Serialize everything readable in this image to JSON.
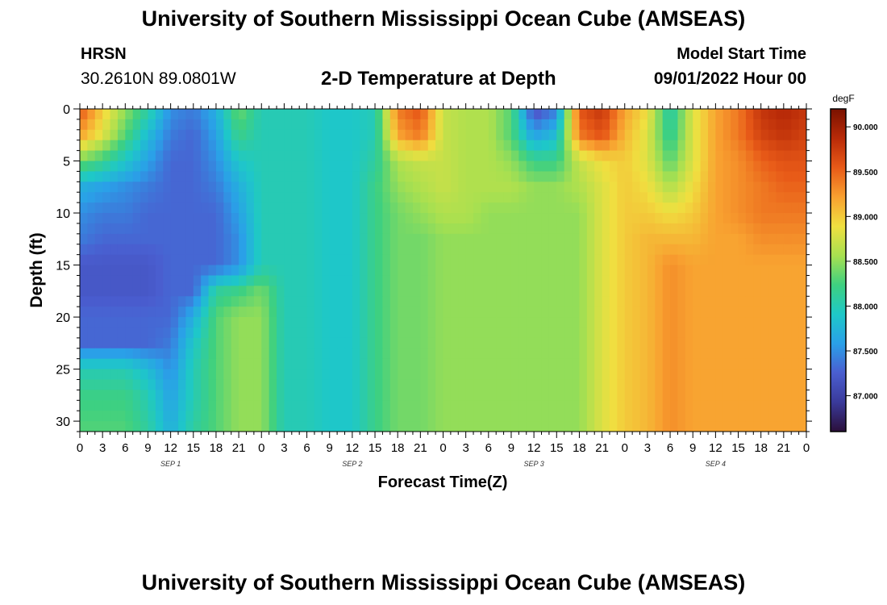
{
  "header": {
    "title": "University of Southern Mississippi Ocean Cube (AMSEAS)",
    "station": "HRSN",
    "coords": "30.2610N  89.0801W",
    "subtitle": "2-D Temperature at Depth",
    "model_start_label": "Model Start Time",
    "model_start_value": "09/01/2022 Hour 00"
  },
  "footer": {
    "title": "University of Southern Mississippi Ocean Cube (AMSEAS)"
  },
  "chart_data": {
    "type": "heatmap",
    "xlabel": "Forecast Time(Z)",
    "ylabel": "Depth (ft)",
    "x_ticks": [
      "0",
      "3",
      "6",
      "9",
      "12",
      "15",
      "18",
      "21",
      "0",
      "3",
      "6",
      "9",
      "12",
      "15",
      "18",
      "21",
      "0",
      "3",
      "6",
      "9",
      "12",
      "15",
      "18",
      "21",
      "0",
      "3",
      "6",
      "9",
      "12",
      "15",
      "18",
      "21",
      "0"
    ],
    "x_hours": [
      0,
      3,
      6,
      9,
      12,
      15,
      18,
      21,
      24,
      27,
      30,
      33,
      36,
      39,
      42,
      45,
      48,
      51,
      54,
      57,
      60,
      63,
      66,
      69,
      72,
      75,
      78,
      81,
      84,
      87,
      90,
      93,
      96
    ],
    "xlim": [
      0,
      96
    ],
    "day_labels": [
      "SEP 1",
      "SEP 2",
      "SEP 3",
      "SEP 4"
    ],
    "day_label_hours": [
      12,
      36,
      60,
      84
    ],
    "y_ticks": [
      0,
      5,
      10,
      15,
      20,
      25,
      30
    ],
    "ylim": [
      0,
      31
    ],
    "colorbar": {
      "unit": "degF",
      "ticks": [
        "87.000",
        "87.500",
        "88.000",
        "88.500",
        "89.000",
        "89.500",
        "90.000"
      ],
      "tick_values": [
        87.0,
        87.5,
        88.0,
        88.5,
        89.0,
        89.5,
        90.0
      ],
      "range": [
        86.6,
        90.2
      ],
      "stops": [
        "#2b0f3a",
        "#3a3a9a",
        "#4a5ed0",
        "#2aa0e8",
        "#1ec8c8",
        "#3ed080",
        "#a8e050",
        "#f0e040",
        "#f8a030",
        "#e85a18",
        "#b82a08",
        "#7a1200"
      ]
    },
    "depths_ft": [
      0,
      2.5,
      5,
      7.5,
      10,
      12.5,
      15,
      17.5,
      20,
      22.5,
      25,
      27.5,
      31
    ],
    "hours": [
      0,
      3,
      6,
      9,
      12,
      15,
      18,
      21,
      24,
      27,
      30,
      33,
      36,
      39,
      42,
      45,
      48,
      51,
      54,
      57,
      60,
      63,
      66,
      69,
      72,
      75,
      78,
      81,
      84,
      87,
      90,
      93,
      96
    ],
    "values_degF": [
      [
        89.6,
        89.0,
        88.5,
        88.1,
        87.5,
        87.4,
        87.7,
        88.4,
        88.0,
        88.0,
        88.0,
        87.9,
        87.9,
        88.0,
        89.4,
        89.6,
        88.7,
        88.6,
        88.6,
        88.3,
        87.1,
        87.4,
        89.6,
        89.8,
        89.2,
        88.9,
        88.0,
        88.8,
        89.2,
        89.4,
        89.8,
        89.9,
        89.8
      ],
      [
        89.2,
        88.8,
        88.3,
        87.8,
        87.4,
        87.3,
        87.6,
        88.2,
        88.0,
        88.0,
        88.0,
        87.9,
        87.9,
        88.0,
        89.2,
        89.4,
        88.7,
        88.6,
        88.6,
        88.3,
        87.6,
        87.8,
        89.4,
        89.6,
        89.1,
        88.8,
        88.1,
        88.8,
        89.2,
        89.4,
        89.7,
        89.8,
        89.7
      ],
      [
        88.4,
        88.2,
        87.9,
        87.6,
        87.3,
        87.3,
        87.5,
        87.9,
        88.0,
        88.0,
        88.0,
        87.9,
        87.9,
        88.1,
        88.6,
        88.7,
        88.7,
        88.6,
        88.6,
        88.5,
        88.2,
        88.2,
        88.7,
        88.9,
        89.0,
        88.8,
        88.3,
        88.8,
        89.2,
        89.3,
        89.5,
        89.6,
        89.6
      ],
      [
        87.7,
        87.6,
        87.5,
        87.4,
        87.3,
        87.3,
        87.4,
        87.7,
        88.0,
        88.0,
        88.0,
        87.9,
        87.9,
        88.2,
        88.5,
        88.6,
        88.7,
        88.6,
        88.6,
        88.6,
        88.5,
        88.5,
        88.6,
        88.8,
        89.0,
        88.9,
        88.6,
        88.9,
        89.2,
        89.3,
        89.4,
        89.5,
        89.5
      ],
      [
        87.5,
        87.4,
        87.4,
        87.3,
        87.3,
        87.3,
        87.3,
        87.6,
        88.0,
        88.0,
        88.0,
        87.9,
        87.9,
        88.2,
        88.4,
        88.5,
        88.6,
        88.6,
        88.5,
        88.5,
        88.5,
        88.5,
        88.5,
        88.8,
        89.0,
        89.0,
        88.9,
        89.0,
        89.2,
        89.3,
        89.4,
        89.4,
        89.4
      ],
      [
        87.4,
        87.3,
        87.3,
        87.3,
        87.3,
        87.3,
        87.3,
        87.5,
        88.0,
        88.0,
        88.0,
        87.9,
        87.9,
        88.2,
        88.4,
        88.4,
        88.5,
        88.5,
        88.5,
        88.5,
        88.5,
        88.5,
        88.5,
        88.8,
        89.0,
        89.1,
        89.1,
        89.1,
        89.2,
        89.2,
        89.3,
        89.3,
        89.3
      ],
      [
        87.2,
        87.2,
        87.2,
        87.2,
        87.3,
        87.3,
        87.3,
        87.5,
        88.0,
        88.0,
        88.0,
        87.9,
        87.9,
        88.2,
        88.4,
        88.4,
        88.5,
        88.5,
        88.5,
        88.5,
        88.5,
        88.5,
        88.5,
        88.8,
        89.0,
        89.1,
        89.3,
        89.2,
        89.2,
        89.2,
        89.2,
        89.2,
        89.2
      ],
      [
        87.2,
        87.2,
        87.2,
        87.2,
        87.3,
        87.3,
        88.1,
        88.2,
        88.4,
        88.0,
        88.0,
        87.9,
        87.9,
        88.2,
        88.4,
        88.4,
        88.5,
        88.5,
        88.5,
        88.5,
        88.5,
        88.5,
        88.5,
        88.8,
        89.0,
        89.1,
        89.3,
        89.2,
        89.2,
        89.2,
        89.2,
        89.2,
        89.2
      ],
      [
        87.3,
        87.3,
        87.3,
        87.3,
        87.3,
        87.7,
        88.3,
        88.5,
        88.5,
        88.0,
        88.0,
        87.9,
        87.9,
        88.2,
        88.4,
        88.4,
        88.5,
        88.5,
        88.5,
        88.5,
        88.5,
        88.5,
        88.5,
        88.8,
        89.0,
        89.1,
        89.3,
        89.2,
        89.2,
        89.2,
        89.2,
        89.2,
        89.2
      ],
      [
        87.3,
        87.3,
        87.3,
        87.3,
        87.4,
        87.9,
        88.3,
        88.5,
        88.5,
        88.0,
        88.0,
        87.9,
        87.9,
        88.2,
        88.4,
        88.4,
        88.5,
        88.5,
        88.5,
        88.5,
        88.5,
        88.5,
        88.5,
        88.8,
        89.0,
        89.1,
        89.3,
        89.2,
        89.2,
        89.2,
        89.2,
        89.2,
        89.2
      ],
      [
        88.0,
        88.0,
        88.0,
        87.8,
        87.5,
        88.0,
        88.3,
        88.5,
        88.5,
        88.0,
        88.0,
        87.9,
        87.9,
        88.2,
        88.4,
        88.4,
        88.5,
        88.5,
        88.5,
        88.5,
        88.5,
        88.5,
        88.5,
        88.8,
        89.0,
        89.1,
        89.3,
        89.2,
        89.2,
        89.2,
        89.2,
        89.2,
        89.2
      ],
      [
        88.2,
        88.2,
        88.2,
        88.0,
        87.6,
        88.0,
        88.3,
        88.5,
        88.5,
        88.0,
        88.0,
        87.9,
        87.9,
        88.2,
        88.4,
        88.4,
        88.5,
        88.5,
        88.5,
        88.5,
        88.5,
        88.5,
        88.5,
        88.8,
        89.0,
        89.1,
        89.3,
        89.2,
        89.2,
        89.2,
        89.2,
        89.2,
        89.2
      ],
      [
        88.3,
        88.3,
        88.3,
        88.1,
        87.7,
        88.1,
        88.3,
        88.5,
        88.5,
        88.0,
        88.0,
        87.9,
        87.9,
        88.2,
        88.4,
        88.4,
        88.5,
        88.5,
        88.5,
        88.5,
        88.5,
        88.5,
        88.5,
        88.8,
        89.0,
        89.1,
        89.3,
        89.2,
        89.2,
        89.2,
        89.2,
        89.2,
        89.2
      ]
    ]
  }
}
